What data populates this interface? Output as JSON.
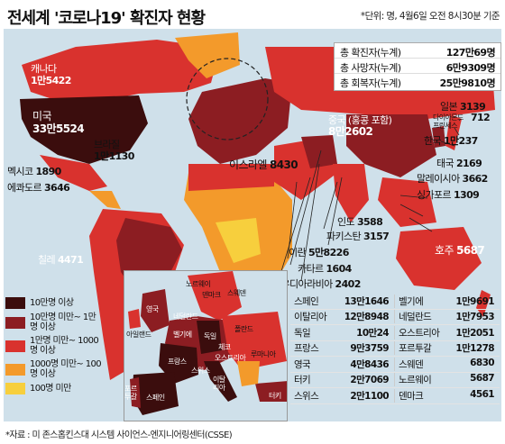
{
  "header": {
    "title": "전세계 '코로나19' 확진자 현황",
    "unit_note": "*단위: 명, 4월6일 오전 8시30분 기준"
  },
  "colors": {
    "ocean": "#cfe0ea",
    "tier_100k_plus": "#3b0d0d",
    "tier_10k_100k": "#8c1d22",
    "tier_1k_10k": "#d9322e",
    "tier_100_1k": "#f39a2b",
    "tier_under_100": "#f7cf3d"
  },
  "totals": [
    {
      "label": "총 확진자(누계)",
      "value": "127만69명"
    },
    {
      "label": "총 사망자(누계)",
      "value": "6만9309명"
    },
    {
      "label": "총 회복자(누계)",
      "value": "25만9810명"
    }
  ],
  "countries": {
    "canada": {
      "name": "캐나다",
      "value": "1만5422"
    },
    "usa": {
      "name": "미국",
      "value": "33만5524"
    },
    "brazil": {
      "name": "브라질",
      "value": "1만1130"
    },
    "mexico": {
      "name": "멕시코",
      "value": "1890"
    },
    "ecuador": {
      "name": "에콰도르",
      "value": "3646"
    },
    "chile": {
      "name": "칠레",
      "value": "4471"
    },
    "israel": {
      "name": "이스라엘",
      "value": "8430"
    },
    "china": {
      "name": "중국 (홍콩 포함)",
      "value": "8만2602"
    },
    "japan": {
      "name": "일본",
      "value": "3139"
    },
    "diamond_princess": {
      "name": "다이아몬드 프린세스",
      "value": "712"
    },
    "korea": {
      "name": "한국",
      "value": "1만237"
    },
    "thailand": {
      "name": "태국",
      "value": "2169"
    },
    "malaysia": {
      "name": "말레이시아",
      "value": "3662"
    },
    "singapore": {
      "name": "싱가포르",
      "value": "1309"
    },
    "australia": {
      "name": "호주",
      "value": "5687"
    },
    "india": {
      "name": "인도",
      "value": "3588"
    },
    "pakistan": {
      "name": "파키스탄",
      "value": "3157"
    },
    "iran": {
      "name": "이란",
      "value": "5만8226"
    },
    "qatar": {
      "name": "카타르",
      "value": "1604"
    },
    "saudi": {
      "name": "사우디아라비아",
      "value": "2402"
    }
  },
  "legend": [
    {
      "label": "10만명 이상",
      "color": "#3b0d0d"
    },
    {
      "label": "10만명 미만~ 1만명 이상",
      "color": "#8c1d22"
    },
    {
      "label": "1만명 미만~ 1000명 이상",
      "color": "#d9322e"
    },
    {
      "label": "1000명 미만~ 100명 이상",
      "color": "#f39a2b"
    },
    {
      "label": "100명 미만",
      "color": "#f7cf3d"
    }
  ],
  "inset_labels": {
    "norway": "노르웨이",
    "denmark": "덴마크",
    "sweden": "스웨덴",
    "uk": "영국",
    "netherlands": "네덜란드",
    "belgium": "벨기에",
    "ireland": "아일랜드",
    "germany": "독일",
    "poland": "폴란드",
    "czech": "체코",
    "austria": "오스트리아",
    "romania": "루마니아",
    "france": "프랑스",
    "switzerland": "스위스",
    "italy": "이탈리아",
    "portugal": "포르투갈",
    "spain": "스페인",
    "turkey": "터키"
  },
  "table": [
    [
      {
        "name": "스페인",
        "value": "13만1646"
      },
      {
        "name": "벨기에",
        "value": "1만9691"
      }
    ],
    [
      {
        "name": "이탈리아",
        "value": "12만8948"
      },
      {
        "name": "네덜란드",
        "value": "1만7953"
      }
    ],
    [
      {
        "name": "독일",
        "value": "10만24"
      },
      {
        "name": "오스트리아",
        "value": "1만2051"
      }
    ],
    [
      {
        "name": "프랑스",
        "value": "9만3759"
      },
      {
        "name": "포르투갈",
        "value": "1만1278"
      }
    ],
    [
      {
        "name": "영국",
        "value": "4만8436"
      },
      {
        "name": "스웨덴",
        "value": "6830"
      }
    ],
    [
      {
        "name": "터키",
        "value": "2만7069"
      },
      {
        "name": "노르웨이",
        "value": "5687"
      }
    ],
    [
      {
        "name": "스위스",
        "value": "2만1100"
      },
      {
        "name": "덴마크",
        "value": "4561"
      }
    ]
  ],
  "source": "*자료 : 미 존스홉킨스대 시스템 사이언스-엔지니어링센터(CSSE)"
}
